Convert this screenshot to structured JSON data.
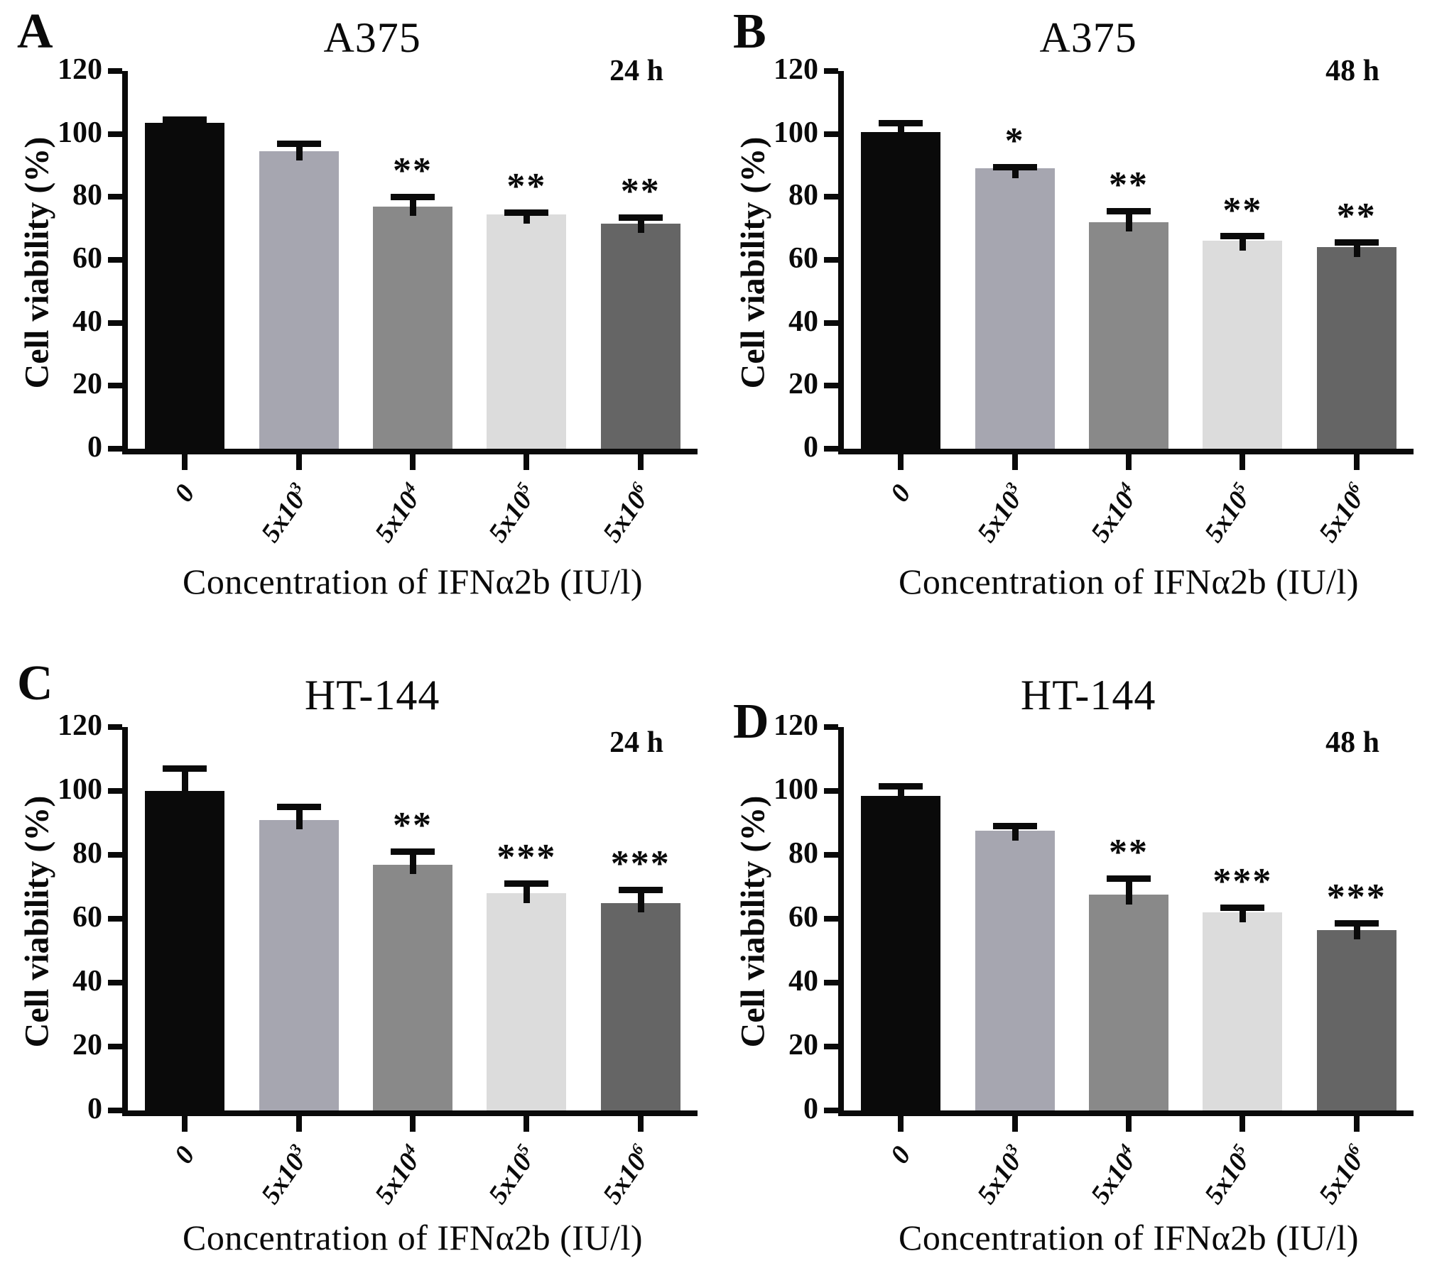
{
  "figure_shared": {
    "xlabel": "Concentration of IFNα2b (IU/l)",
    "ylabel": "Cell viability (%)",
    "categories": [
      "0",
      "5x10^3",
      "5x10^4",
      "5x10^5",
      "5x10^6"
    ],
    "yticks": [
      0,
      20,
      40,
      60,
      80,
      100,
      120
    ],
    "ylim": [
      0,
      120
    ],
    "bar_colors": [
      "#0a0a0a",
      "#a6a6b0",
      "#898989",
      "#dcdcdc",
      "#656565"
    ],
    "axis_color": "#0a0a0a"
  },
  "chart_data": [
    {
      "type": "bar",
      "panel_letter": "A",
      "title": "A375",
      "time_label": "24 h",
      "xlabel": "Concentration of IFNα2b (IU/l)",
      "ylabel": "Cell viability (%)",
      "categories": [
        "0",
        "5x10^3",
        "5x10^4",
        "5x10^5",
        "5x10^6"
      ],
      "values": [
        103.5,
        94.5,
        77,
        74.5,
        71.5
      ],
      "errors": [
        2,
        3.5,
        4,
        1.5,
        3
      ],
      "significance": [
        "",
        "",
        "**",
        "**",
        "**"
      ],
      "ylim": [
        0,
        120
      ],
      "yticks": [
        0,
        20,
        40,
        60,
        80,
        100,
        120
      ],
      "bar_colors": [
        "#0a0a0a",
        "#a6a6b0",
        "#898989",
        "#dcdcdc",
        "#656565"
      ],
      "grid": "off",
      "legend": "none"
    },
    {
      "type": "bar",
      "panel_letter": "B",
      "title": "A375",
      "time_label": "48 h",
      "xlabel": "Concentration of IFNα2b (IU/l)",
      "ylabel": "Cell viability (%)",
      "categories": [
        "0",
        "5x10^3",
        "5x10^4",
        "5x10^5",
        "5x10^6"
      ],
      "values": [
        100.5,
        89,
        72,
        66,
        64
      ],
      "errors": [
        4,
        1.5,
        4.5,
        2.5,
        2.5
      ],
      "significance": [
        "",
        "*",
        "**",
        "**",
        "**"
      ],
      "ylim": [
        0,
        120
      ],
      "yticks": [
        0,
        20,
        40,
        60,
        80,
        100,
        120
      ],
      "bar_colors": [
        "#0a0a0a",
        "#a6a6b0",
        "#898989",
        "#dcdcdc",
        "#656565"
      ],
      "grid": "off",
      "legend": "none"
    },
    {
      "type": "bar",
      "panel_letter": "C",
      "title": "HT-144",
      "time_label": "24 h",
      "xlabel": "Concentration of IFNα2b (IU/l)",
      "ylabel": "Cell viability (%)",
      "categories": [
        "0",
        "5x10^3",
        "5x10^4",
        "5x10^5",
        "5x10^6"
      ],
      "values": [
        100,
        91,
        77,
        68,
        65
      ],
      "errors": [
        8,
        5,
        5,
        4,
        5
      ],
      "significance": [
        "",
        "",
        "**",
        "***",
        "***"
      ],
      "ylim": [
        0,
        120
      ],
      "yticks": [
        0,
        20,
        40,
        60,
        80,
        100,
        120
      ],
      "bar_colors": [
        "#0a0a0a",
        "#a6a6b0",
        "#898989",
        "#dcdcdc",
        "#656565"
      ],
      "grid": "off",
      "legend": "none"
    },
    {
      "type": "bar",
      "panel_letter": "D",
      "title": "HT-144",
      "time_label": "48 h",
      "xlabel": "Concentration of IFNα2b (IU/l)",
      "ylabel": "Cell viability (%)",
      "categories": [
        "0",
        "5x10^3",
        "5x10^4",
        "5x10^5",
        "5x10^6"
      ],
      "values": [
        98.5,
        87.5,
        67.5,
        62,
        56.5
      ],
      "errors": [
        4,
        2.5,
        6,
        2.5,
        3
      ],
      "significance": [
        "",
        "",
        "**",
        "***",
        "***"
      ],
      "ylim": [
        0,
        120
      ],
      "yticks": [
        0,
        20,
        40,
        60,
        80,
        100,
        120
      ],
      "bar_colors": [
        "#0a0a0a",
        "#a6a6b0",
        "#898989",
        "#dcdcdc",
        "#656565"
      ],
      "grid": "off",
      "legend": "none"
    }
  ]
}
